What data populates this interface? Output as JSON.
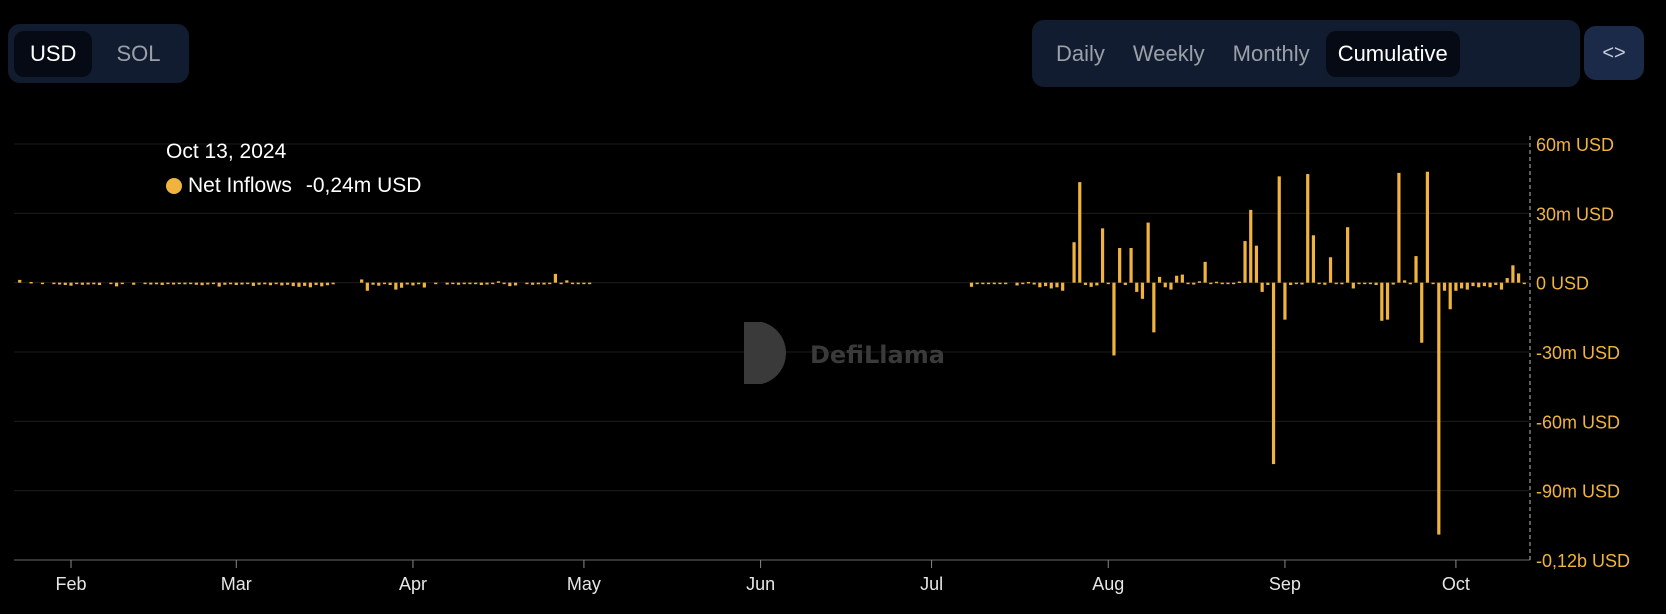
{
  "currency_toggle": {
    "options": [
      "USD",
      "SOL"
    ],
    "selected": "USD"
  },
  "period_toggle": {
    "options": [
      "Daily",
      "Weekly",
      "Monthly",
      "Cumulative"
    ],
    "selected": "Cumulative"
  },
  "embed_button": {
    "label": "<>"
  },
  "watermark": {
    "text": "DefiLlama"
  },
  "tooltip": {
    "date": "Oct 13, 2024",
    "series": "Net Inflows",
    "value": "-0,24m USD"
  },
  "colors": {
    "bar": "#f0b33e",
    "background": "#000000",
    "grid": "#1c1c1c",
    "axis_label": "#f0b33e"
  },
  "chart_data": {
    "type": "bar",
    "title": "",
    "xlabel": "",
    "ylabel": "",
    "x_ticks": [
      "Feb",
      "Mar",
      "Apr",
      "May",
      "Jun",
      "Jul",
      "Aug",
      "Sep",
      "Oct"
    ],
    "y_ticks": [
      "60m USD",
      "30m USD",
      "0 USD",
      "-30m USD",
      "-60m USD",
      "-90m USD",
      "-0,12b USD"
    ],
    "ylim": [
      -120,
      60
    ],
    "y_unit": "m USD",
    "series": [
      {
        "name": "Net Inflows",
        "data": [
          [
            "2024-01-23",
            1.2
          ],
          [
            "2024-01-25",
            0.3
          ],
          [
            "2024-01-27",
            -0.4
          ],
          [
            "2024-01-29",
            -0.3
          ],
          [
            "2024-01-30",
            -0.8
          ],
          [
            "2024-01-31",
            -1.0
          ],
          [
            "2024-02-01",
            -1.3
          ],
          [
            "2024-02-02",
            -0.6
          ],
          [
            "2024-02-03",
            -0.9
          ],
          [
            "2024-02-04",
            -0.8
          ],
          [
            "2024-02-05",
            -0.7
          ],
          [
            "2024-02-06",
            -1.0
          ],
          [
            "2024-02-08",
            -0.5
          ],
          [
            "2024-02-09",
            -1.6
          ],
          [
            "2024-02-10",
            -0.6
          ],
          [
            "2024-02-12",
            -0.9
          ],
          [
            "2024-02-14",
            -0.6
          ],
          [
            "2024-02-15",
            -0.8
          ],
          [
            "2024-02-16",
            -0.7
          ],
          [
            "2024-02-17",
            -1.0
          ],
          [
            "2024-02-18",
            -0.5
          ],
          [
            "2024-02-19",
            -0.8
          ],
          [
            "2024-02-20",
            -0.6
          ],
          [
            "2024-02-21",
            -0.7
          ],
          [
            "2024-02-22",
            -0.4
          ],
          [
            "2024-02-23",
            -0.9
          ],
          [
            "2024-02-24",
            -1.1
          ],
          [
            "2024-02-25",
            -0.8
          ],
          [
            "2024-02-26",
            -0.6
          ],
          [
            "2024-02-27",
            -1.7
          ],
          [
            "2024-02-28",
            -0.9
          ],
          [
            "2024-02-29",
            -0.7
          ],
          [
            "2024-03-01",
            -1.0
          ],
          [
            "2024-03-02",
            -0.8
          ],
          [
            "2024-03-03",
            -0.5
          ],
          [
            "2024-03-04",
            -1.4
          ],
          [
            "2024-03-05",
            -0.9
          ],
          [
            "2024-03-06",
            -0.7
          ],
          [
            "2024-03-07",
            -1.1
          ],
          [
            "2024-03-08",
            -0.6
          ],
          [
            "2024-03-09",
            -1.2
          ],
          [
            "2024-03-10",
            -0.9
          ],
          [
            "2024-03-11",
            -1.5
          ],
          [
            "2024-03-12",
            -1.8
          ],
          [
            "2024-03-13",
            -1.4
          ],
          [
            "2024-03-14",
            -2.0
          ],
          [
            "2024-03-15",
            -1.0
          ],
          [
            "2024-03-16",
            -1.6
          ],
          [
            "2024-03-17",
            -1.1
          ],
          [
            "2024-03-18",
            -0.7
          ],
          [
            "2024-03-23",
            1.4
          ],
          [
            "2024-03-24",
            -3.5
          ],
          [
            "2024-03-25",
            -0.9
          ],
          [
            "2024-03-26",
            -1.3
          ],
          [
            "2024-03-27",
            -0.6
          ],
          [
            "2024-03-28",
            -1.0
          ],
          [
            "2024-03-29",
            -3.0
          ],
          [
            "2024-03-30",
            -2.2
          ],
          [
            "2024-03-31",
            -0.8
          ],
          [
            "2024-04-01",
            -1.2
          ],
          [
            "2024-04-02",
            -0.7
          ],
          [
            "2024-04-03",
            -2.1
          ],
          [
            "2024-04-05",
            -0.5
          ],
          [
            "2024-04-07",
            -0.8
          ],
          [
            "2024-04-08",
            -0.4
          ],
          [
            "2024-04-09",
            -0.9
          ],
          [
            "2024-04-10",
            -0.6
          ],
          [
            "2024-04-11",
            -0.5
          ],
          [
            "2024-04-12",
            -0.3
          ],
          [
            "2024-04-13",
            -1.0
          ],
          [
            "2024-04-14",
            -0.8
          ],
          [
            "2024-04-15",
            -0.5
          ],
          [
            "2024-04-16",
            0.6
          ],
          [
            "2024-04-17",
            -0.4
          ],
          [
            "2024-04-18",
            -1.5
          ],
          [
            "2024-04-19",
            -1.2
          ],
          [
            "2024-04-21",
            -0.6
          ],
          [
            "2024-04-22",
            -0.9
          ],
          [
            "2024-04-23",
            -0.7
          ],
          [
            "2024-04-24",
            -0.8
          ],
          [
            "2024-04-25",
            -0.5
          ],
          [
            "2024-04-26",
            3.8
          ],
          [
            "2024-04-27",
            -0.4
          ],
          [
            "2024-04-28",
            1.0
          ],
          [
            "2024-04-29",
            -0.6
          ],
          [
            "2024-04-30",
            -0.4
          ],
          [
            "2024-05-01",
            -0.5
          ],
          [
            "2024-05-02",
            -0.3
          ],
          [
            "2024-07-08",
            -1.8
          ],
          [
            "2024-07-09",
            -0.4
          ],
          [
            "2024-07-10",
            -0.6
          ],
          [
            "2024-07-11",
            -0.3
          ],
          [
            "2024-07-12",
            -0.5
          ],
          [
            "2024-07-13",
            -0.4
          ],
          [
            "2024-07-14",
            -0.6
          ],
          [
            "2024-07-16",
            -1.2
          ],
          [
            "2024-07-17",
            -0.5
          ],
          [
            "2024-07-18",
            0.3
          ],
          [
            "2024-07-19",
            -0.8
          ],
          [
            "2024-07-20",
            -2.0
          ],
          [
            "2024-07-21",
            -1.5
          ],
          [
            "2024-07-22",
            -2.5
          ],
          [
            "2024-07-23",
            -2.0
          ],
          [
            "2024-07-24",
            -3.5
          ],
          [
            "2024-07-26",
            17.5
          ],
          [
            "2024-07-27",
            43.5
          ],
          [
            "2024-07-28",
            -1.0
          ],
          [
            "2024-07-29",
            -1.8
          ],
          [
            "2024-07-30",
            -1.2
          ],
          [
            "2024-07-31",
            23.5
          ],
          [
            "2024-08-01",
            -0.6
          ],
          [
            "2024-08-02",
            -31.5
          ],
          [
            "2024-08-03",
            15.0
          ],
          [
            "2024-08-04",
            -1.0
          ],
          [
            "2024-08-05",
            15.0
          ],
          [
            "2024-08-06",
            -4.0
          ],
          [
            "2024-08-07",
            -7.0
          ],
          [
            "2024-08-08",
            26.0
          ],
          [
            "2024-08-09",
            -21.5
          ],
          [
            "2024-08-10",
            2.5
          ],
          [
            "2024-08-11",
            -2.0
          ],
          [
            "2024-08-12",
            -3.0
          ],
          [
            "2024-08-13",
            3.0
          ],
          [
            "2024-08-14",
            3.5
          ],
          [
            "2024-08-15",
            -0.5
          ],
          [
            "2024-08-16",
            -0.8
          ],
          [
            "2024-08-17",
            0.6
          ],
          [
            "2024-08-18",
            9.0
          ],
          [
            "2024-08-19",
            -0.3
          ],
          [
            "2024-08-20",
            0.4
          ],
          [
            "2024-08-21",
            -0.5
          ],
          [
            "2024-08-22",
            -0.4
          ],
          [
            "2024-08-23",
            -0.6
          ],
          [
            "2024-08-24",
            0.5
          ],
          [
            "2024-08-25",
            18.0
          ],
          [
            "2024-08-26",
            31.5
          ],
          [
            "2024-08-27",
            16.0
          ],
          [
            "2024-08-28",
            -4.0
          ],
          [
            "2024-08-29",
            -1.0
          ],
          [
            "2024-08-30",
            -78.5
          ],
          [
            "2024-08-31",
            46.0
          ],
          [
            "2024-09-01",
            -16.0
          ],
          [
            "2024-09-02",
            -1.0
          ],
          [
            "2024-09-03",
            -0.5
          ],
          [
            "2024-09-04",
            -0.8
          ],
          [
            "2024-09-05",
            47.0
          ],
          [
            "2024-09-06",
            20.5
          ],
          [
            "2024-09-07",
            -0.6
          ],
          [
            "2024-09-08",
            -0.9
          ],
          [
            "2024-09-09",
            11.0
          ],
          [
            "2024-09-10",
            -0.5
          ],
          [
            "2024-09-11",
            -0.7
          ],
          [
            "2024-09-12",
            24.0
          ],
          [
            "2024-09-13",
            -2.5
          ],
          [
            "2024-09-14",
            -0.4
          ],
          [
            "2024-09-15",
            -0.6
          ],
          [
            "2024-09-16",
            -0.5
          ],
          [
            "2024-09-17",
            -1.0
          ],
          [
            "2024-09-18",
            -16.5
          ],
          [
            "2024-09-19",
            -16.0
          ],
          [
            "2024-09-20",
            -0.8
          ],
          [
            "2024-09-21",
            47.5
          ],
          [
            "2024-09-22",
            1.0
          ],
          [
            "2024-09-23",
            -0.7
          ],
          [
            "2024-09-24",
            11.5
          ],
          [
            "2024-09-25",
            -26.0
          ],
          [
            "2024-09-26",
            48.0
          ],
          [
            "2024-09-27",
            -0.5
          ],
          [
            "2024-09-28",
            -109.0
          ],
          [
            "2024-09-29",
            -3.5
          ],
          [
            "2024-09-30",
            -11.5
          ],
          [
            "2024-10-01",
            -3.5
          ],
          [
            "2024-10-02",
            -2.5
          ],
          [
            "2024-10-03",
            -3.0
          ],
          [
            "2024-10-04",
            -1.5
          ],
          [
            "2024-10-05",
            -2.0
          ],
          [
            "2024-10-06",
            -1.5
          ],
          [
            "2024-10-07",
            -2.0
          ],
          [
            "2024-10-08",
            -1.0
          ],
          [
            "2024-10-09",
            -3.0
          ],
          [
            "2024-10-10",
            2.0
          ],
          [
            "2024-10-11",
            7.5
          ],
          [
            "2024-10-12",
            4.0
          ],
          [
            "2024-10-13",
            -0.24
          ]
        ]
      }
    ]
  }
}
